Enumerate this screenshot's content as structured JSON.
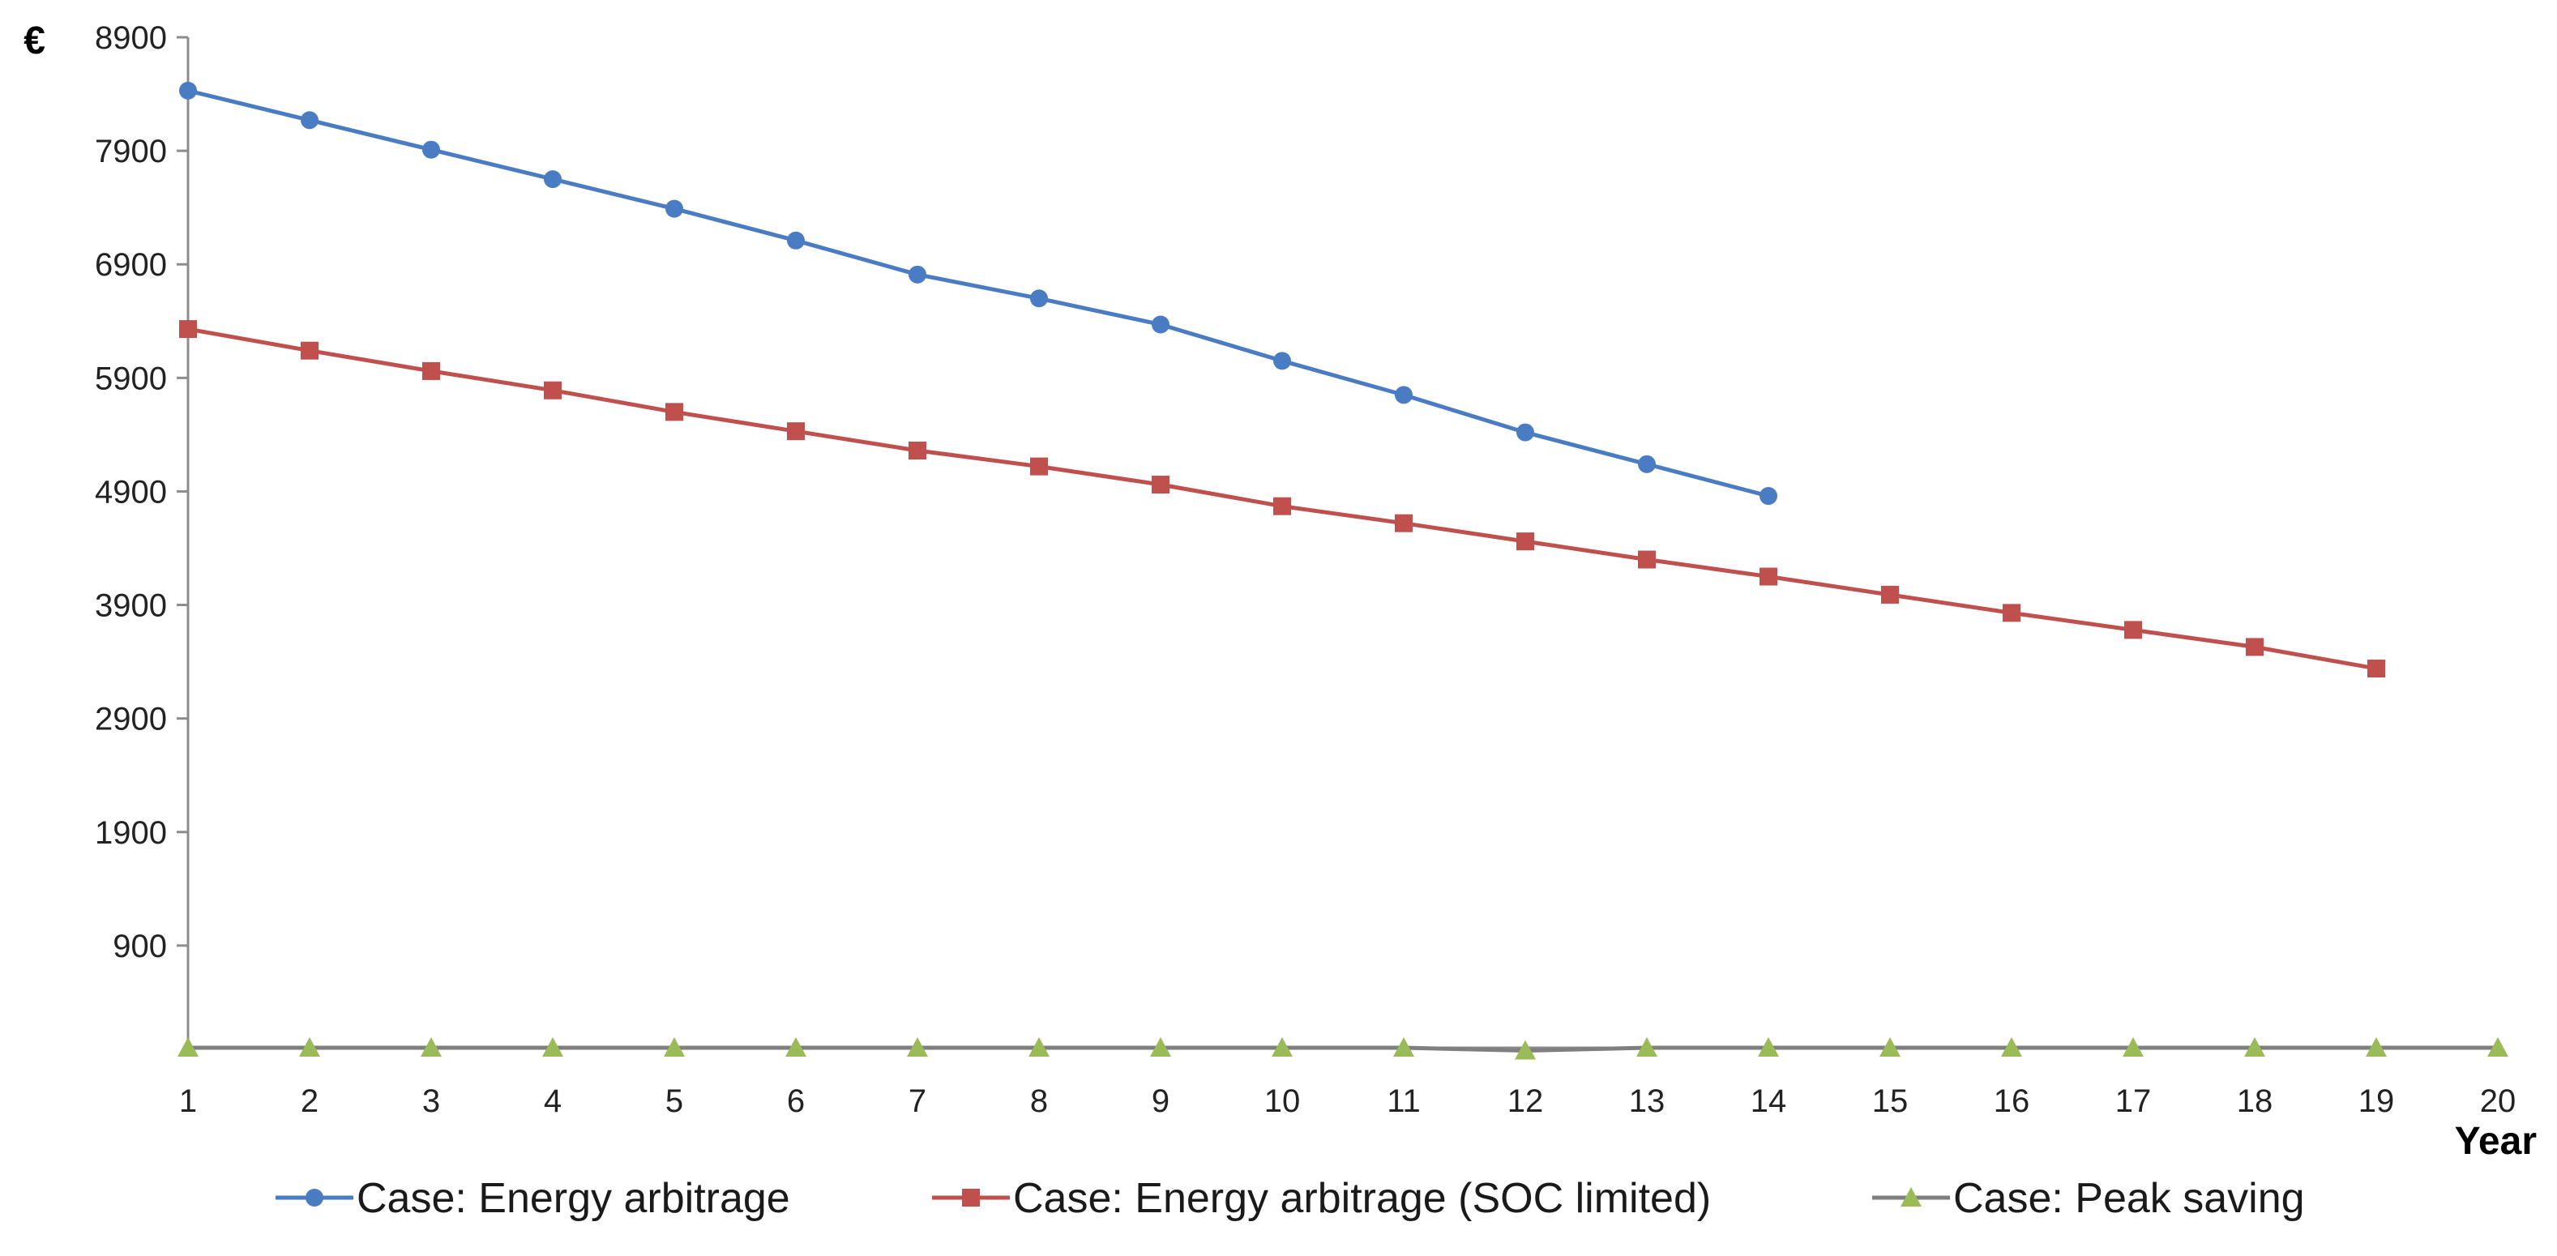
{
  "chart_data": {
    "type": "line",
    "title": "",
    "xlabel": "Year",
    "ylabel": "€",
    "x": [
      1,
      2,
      3,
      4,
      5,
      6,
      7,
      8,
      9,
      10,
      11,
      12,
      13,
      14,
      15,
      16,
      17,
      18,
      19,
      20
    ],
    "x_ticks": [
      "1",
      "2",
      "3",
      "4",
      "5",
      "6",
      "7",
      "8",
      "9",
      "10",
      "11",
      "12",
      "13",
      "14",
      "15",
      "16",
      "17",
      "18",
      "19",
      "20"
    ],
    "y_ticks": [
      "900",
      "1900",
      "2900",
      "3900",
      "4900",
      "5900",
      "6900",
      "7900",
      "8900"
    ],
    "xlim": [
      1,
      20
    ],
    "ylim": [
      0,
      8900
    ],
    "grid": false,
    "legend_position": "bottom",
    "series": [
      {
        "name": "Case: Energy arbitrage",
        "color": "#4a7cc4",
        "marker": "circle",
        "x": [
          1,
          2,
          3,
          4,
          5,
          6,
          7,
          8,
          9,
          10,
          11,
          12,
          13,
          14
        ],
        "values": [
          8430,
          8170,
          7910,
          7650,
          7390,
          7110,
          6810,
          6600,
          6370,
          6050,
          5750,
          5420,
          5140,
          4860
        ]
      },
      {
        "name": "Case: Energy arbitrage (SOC limited)",
        "color": "#c0504d",
        "marker": "square",
        "x": [
          1,
          2,
          3,
          4,
          5,
          6,
          7,
          8,
          9,
          10,
          11,
          12,
          13,
          14,
          15,
          16,
          17,
          18,
          19
        ],
        "values": [
          6330,
          6140,
          5960,
          5790,
          5600,
          5430,
          5260,
          5120,
          4960,
          4770,
          4620,
          4460,
          4300,
          4150,
          3990,
          3830,
          3680,
          3530,
          3340
        ]
      },
      {
        "name": "Case: Peak saving",
        "color": "#9bbb59",
        "line_color": "#7f7f7f",
        "marker": "triangle",
        "x": [
          1,
          2,
          3,
          4,
          5,
          6,
          7,
          8,
          9,
          10,
          11,
          12,
          13,
          14,
          15,
          16,
          17,
          18,
          19,
          20
        ],
        "values": [
          0,
          0,
          0,
          0,
          0,
          0,
          0,
          0,
          0,
          0,
          0,
          -25,
          0,
          0,
          0,
          0,
          0,
          0,
          0,
          0
        ]
      }
    ]
  }
}
